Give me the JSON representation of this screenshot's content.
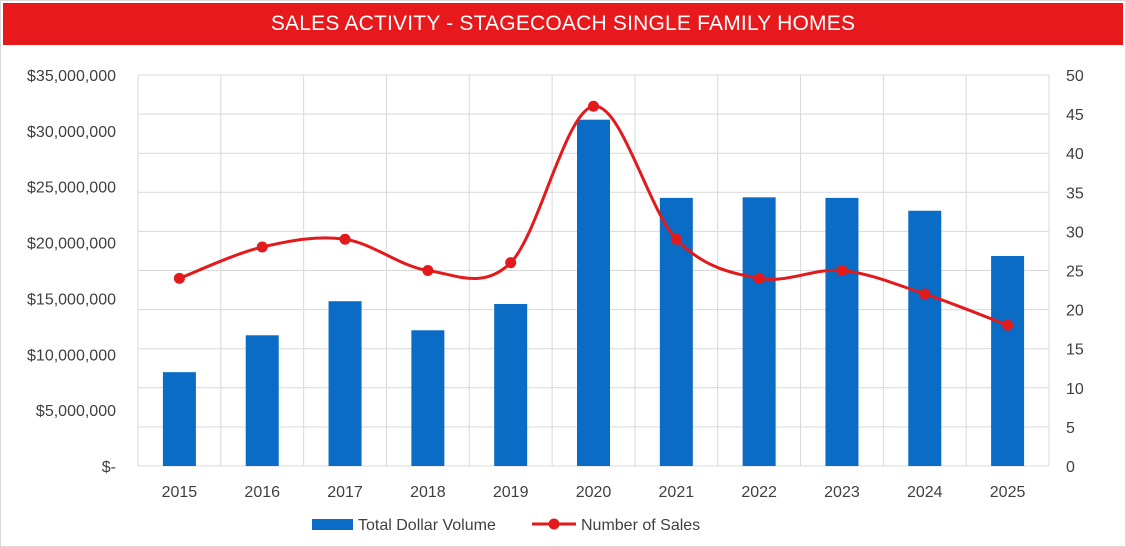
{
  "chart_data": {
    "type": "bar",
    "title": "SALES ACTIVITY - STAGECOACH SINGLE FAMILY HOMES",
    "categories": [
      "2015",
      "2016",
      "2017",
      "2018",
      "2019",
      "2020",
      "2021",
      "2022",
      "2023",
      "2024",
      "2025"
    ],
    "series": [
      {
        "name": "Total Dollar Volume",
        "type": "bar",
        "axis": "left",
        "color": "#0a6cc4",
        "values": [
          8400000,
          11700000,
          14750000,
          12150000,
          14500000,
          31000000,
          24000000,
          24050000,
          24000000,
          22850000,
          18800000
        ]
      },
      {
        "name": "Number of Sales",
        "type": "line",
        "axis": "right",
        "color": "#e31a1c",
        "smooth": true,
        "marker": "circle",
        "values": [
          24,
          28,
          29,
          25,
          26,
          46,
          29,
          24,
          25,
          22,
          18
        ]
      }
    ],
    "y_left": {
      "ylim": [
        0,
        35000000
      ],
      "ticks": [
        0,
        5000000,
        10000000,
        15000000,
        20000000,
        25000000,
        30000000,
        35000000
      ],
      "tick_labels": [
        "$-",
        "$5,000,000",
        "$10,000,000",
        "$15,000,000",
        "$20,000,000",
        "$25,000,000",
        "$30,000,000",
        "$35,000,000"
      ]
    },
    "y_right": {
      "ylim": [
        0,
        50
      ],
      "ticks": [
        0,
        5,
        10,
        15,
        20,
        25,
        30,
        35,
        40,
        45,
        50
      ],
      "tick_labels": [
        "0",
        "5",
        "10",
        "15",
        "20",
        "25",
        "30",
        "35",
        "40",
        "45",
        "50"
      ]
    },
    "grid": true,
    "legend_position": "bottom"
  }
}
